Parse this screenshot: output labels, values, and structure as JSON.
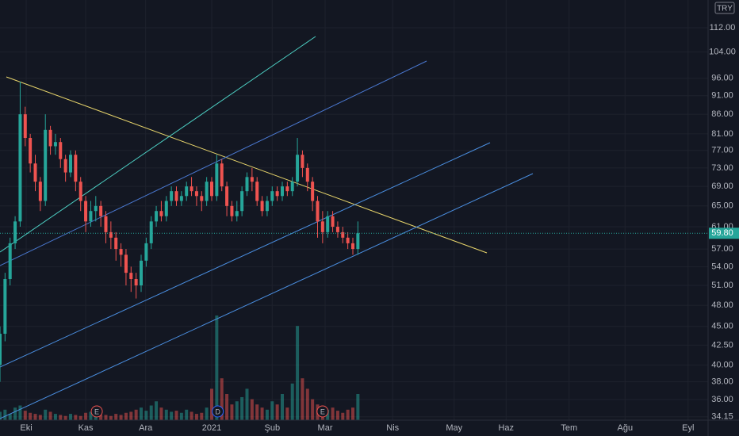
{
  "chart_data": {
    "type": "candlestick",
    "currency": "TRY",
    "open": [
      40,
      44,
      52,
      58,
      62,
      86,
      80,
      74,
      70,
      66,
      82,
      78,
      79,
      75,
      72,
      76,
      70,
      66,
      62,
      64,
      65,
      63,
      60,
      59,
      57,
      56,
      53,
      52,
      51,
      55,
      58,
      62,
      64,
      63,
      66,
      68,
      66,
      67,
      69,
      68,
      67,
      66,
      70,
      67,
      74,
      69,
      65,
      63,
      64,
      68,
      71,
      70,
      66,
      64,
      66,
      68,
      67,
      69,
      68,
      70,
      76,
      73,
      70,
      66,
      62,
      60,
      63,
      61,
      60,
      59,
      58,
      57
    ],
    "high": [
      45,
      53,
      59,
      63,
      95,
      88,
      81,
      76,
      71,
      86,
      83,
      81,
      80,
      76,
      77,
      77,
      71,
      67,
      66,
      67,
      66,
      64,
      62,
      60,
      58,
      57,
      54,
      53,
      56,
      59,
      63,
      65,
      66,
      67,
      69,
      69,
      68,
      70,
      71,
      69,
      68,
      71,
      71,
      76,
      75,
      70,
      66,
      66,
      69,
      72,
      73,
      71,
      67,
      67,
      69,
      69,
      70,
      70,
      71,
      80,
      77,
      74,
      71,
      67,
      64,
      64,
      64,
      62,
      61,
      60,
      59,
      62
    ],
    "low": [
      38,
      43,
      51,
      57,
      61,
      78,
      72,
      68,
      64,
      65,
      76,
      76,
      73,
      70,
      71,
      68,
      64,
      60,
      61,
      62,
      61,
      58,
      57,
      55,
      54,
      51,
      50,
      49,
      50,
      54,
      57,
      61,
      62,
      62,
      65,
      65,
      65,
      66,
      67,
      65,
      64,
      65,
      66,
      66,
      68,
      63,
      62,
      62,
      63,
      67,
      68,
      65,
      63,
      63,
      65,
      66,
      66,
      67,
      67,
      69,
      71,
      68,
      64,
      59,
      58,
      59,
      60,
      59,
      58,
      57,
      56,
      56
    ],
    "close": [
      44,
      52,
      58,
      62,
      86,
      80,
      74,
      70,
      66,
      82,
      78,
      79,
      75,
      72,
      76,
      70,
      66,
      62,
      64,
      65,
      63,
      60,
      59,
      57,
      56,
      53,
      52,
      51,
      55,
      58,
      62,
      64,
      63,
      66,
      68,
      66,
      67,
      69,
      68,
      67,
      66,
      70,
      67,
      74,
      69,
      65,
      63,
      64,
      68,
      71,
      70,
      66,
      64,
      66,
      68,
      67,
      69,
      68,
      70,
      76,
      73,
      70,
      66,
      62,
      60,
      63,
      61,
      60,
      59,
      58,
      57,
      59.8
    ],
    "volume": [
      8,
      10,
      6,
      12,
      14,
      9,
      7,
      6,
      5,
      10,
      8,
      6,
      5,
      4,
      6,
      5,
      4,
      7,
      8,
      6,
      5,
      5,
      4,
      6,
      5,
      7,
      8,
      10,
      12,
      9,
      14,
      18,
      12,
      10,
      8,
      9,
      7,
      10,
      8,
      6,
      7,
      12,
      30,
      100,
      40,
      25,
      15,
      18,
      22,
      30,
      20,
      15,
      12,
      10,
      18,
      15,
      25,
      12,
      35,
      90,
      40,
      30,
      20,
      15,
      8,
      10,
      12,
      9,
      7,
      10,
      12,
      25
    ],
    "up_color": "#26a69a",
    "down_color": "#ef5350",
    "log_scale": true,
    "grid": true,
    "ylim": [
      33.8,
      121.9
    ],
    "yticks": [
      {
        "value": 112,
        "label": "112.00"
      },
      {
        "value": 104,
        "label": "104.00"
      },
      {
        "value": 96,
        "label": "96.00"
      },
      {
        "value": 91,
        "label": "91.00"
      },
      {
        "value": 86,
        "label": "86.00"
      },
      {
        "value": 81,
        "label": "81.00"
      },
      {
        "value": 77,
        "label": "77.00"
      },
      {
        "value": 73,
        "label": "73.00"
      },
      {
        "value": 69,
        "label": "69.00"
      },
      {
        "value": 65,
        "label": "65.00"
      },
      {
        "value": 61,
        "label": "61.00"
      },
      {
        "value": 57,
        "label": "57.00"
      },
      {
        "value": 54,
        "label": "54.00"
      },
      {
        "value": 51,
        "label": "51.00"
      },
      {
        "value": 48,
        "label": "48.00"
      },
      {
        "value": 45,
        "label": "45.00"
      },
      {
        "value": 42.5,
        "label": "42.50"
      },
      {
        "value": 40,
        "label": "40.00"
      },
      {
        "value": 38,
        "label": "38.00"
      },
      {
        "value": 36,
        "label": "36.00"
      },
      {
        "value": 34.15,
        "label": "34.15"
      }
    ],
    "xlim": [
      0,
      140
    ],
    "xticks": [
      {
        "value": 5.2,
        "label": "Eki"
      },
      {
        "value": 17,
        "label": "Kas"
      },
      {
        "value": 28.9,
        "label": "Ara"
      },
      {
        "value": 42,
        "label": "2021"
      },
      {
        "value": 54,
        "label": "Şub"
      },
      {
        "value": 64.5,
        "label": "Mar"
      },
      {
        "value": 77.9,
        "label": "Nis"
      },
      {
        "value": 90.1,
        "label": "May"
      },
      {
        "value": 100.4,
        "label": "Haz"
      },
      {
        "value": 112.9,
        "label": "Tem"
      },
      {
        "value": 124,
        "label": "Ağu"
      },
      {
        "value": 136.5,
        "label": "Eyl"
      }
    ],
    "last_price": {
      "value": 59.8,
      "label": "59.80"
    },
    "events": [
      {
        "x": 19.2,
        "label": "E"
      },
      {
        "x": 43.2,
        "label": "D"
      },
      {
        "x": 64,
        "label": "E"
      }
    ]
  }
}
